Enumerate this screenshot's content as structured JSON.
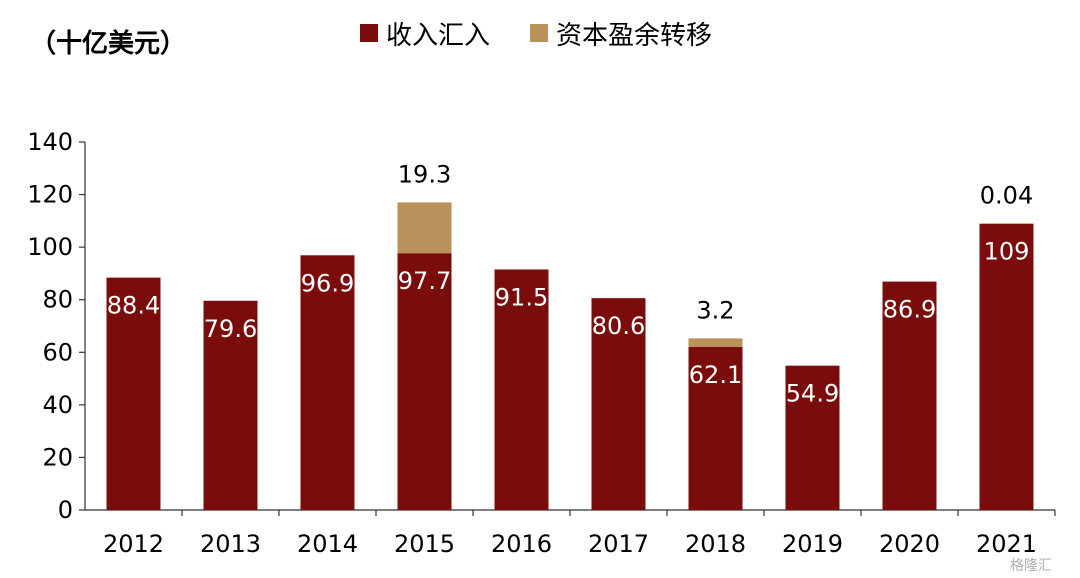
{
  "chart_data": {
    "type": "bar",
    "stacked": true,
    "unit_label": "（十亿美元）",
    "categories": [
      "2012",
      "2013",
      "2014",
      "2015",
      "2016",
      "2017",
      "2018",
      "2019",
      "2020",
      "2021"
    ],
    "series": [
      {
        "name": "收入汇入",
        "color": "#7B0C0C",
        "values": [
          88.4,
          79.6,
          96.9,
          97.7,
          91.5,
          80.6,
          62.1,
          54.9,
          86.9,
          109
        ],
        "labels": [
          "88.4",
          "79.6",
          "96.9",
          "97.7",
          "91.5",
          "80.6",
          "62.1",
          "54.9",
          "86.9",
          "109"
        ]
      },
      {
        "name": "资本盈余转移",
        "color": "#B8925A",
        "values": [
          0,
          0,
          0,
          19.3,
          0,
          0,
          3.2,
          0,
          0,
          0.04
        ],
        "labels": [
          "",
          "",
          "",
          "19.3",
          "",
          "",
          "3.2",
          "",
          "",
          "0.04"
        ]
      }
    ],
    "ylim": [
      0,
      140
    ],
    "yticks": [
      0,
      20,
      40,
      60,
      80,
      100,
      120,
      140
    ],
    "grid": false,
    "legend_position": "top-center"
  },
  "watermark": "格隆汇"
}
